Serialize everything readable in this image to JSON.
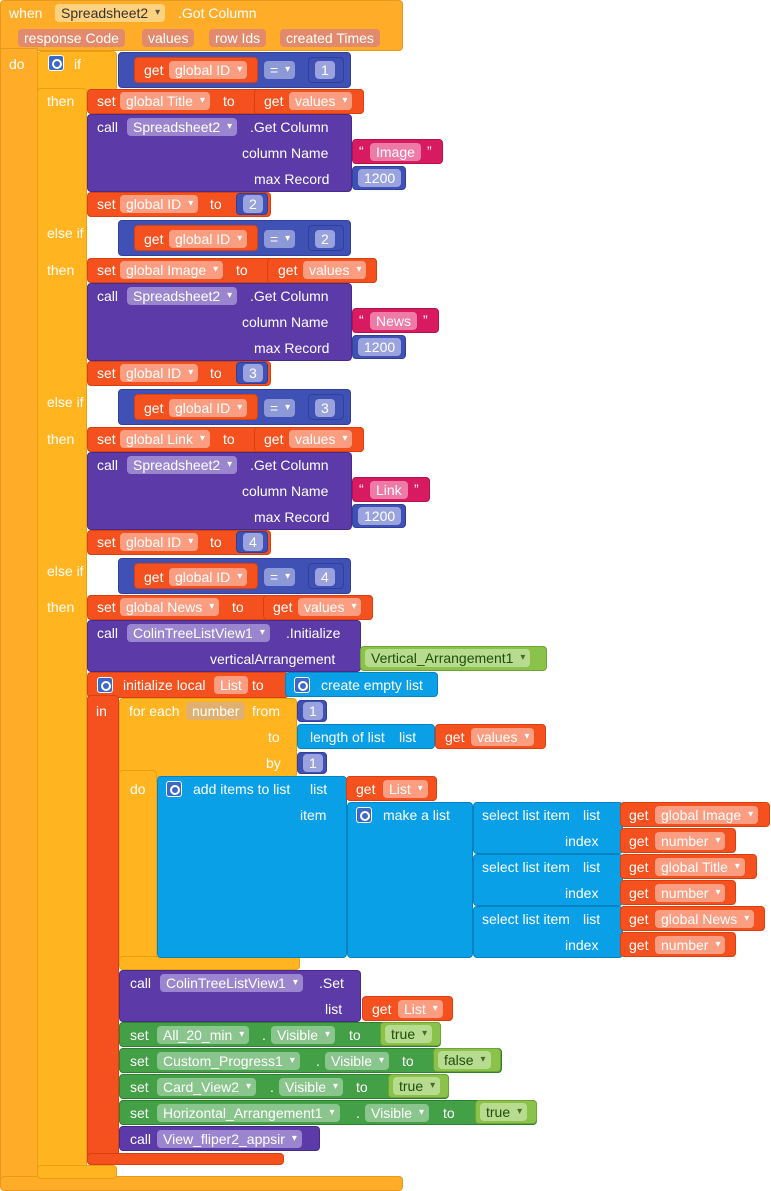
{
  "event": {
    "when": "when",
    "component": "Spreadsheet2",
    "event": ".Got Column",
    "params": [
      "response Code",
      "values",
      "row Ids",
      "created Times"
    ],
    "do": "do"
  },
  "kw": {
    "if": "if",
    "then": "then",
    "elseif": "else if",
    "set": "set",
    "to": "to",
    "get": "get",
    "call": "call",
    "eq": "=",
    "col_name": "column Name",
    "max_rec": "max Record",
    "in": "in",
    "init_local": "initialize local",
    "for_each": "for each",
    "from": "from",
    "by": "by",
    "list": "list",
    "item": "item",
    "index": "index",
    "len_of_list": "length of list",
    "create_empty": "create empty list",
    "add_items": "add items to list",
    "make_list": "make a list",
    "select_item": "select list item",
    "visible": "Visible",
    "dot": ".",
    "ldq": "“",
    "rdq": "”"
  },
  "vars": {
    "global_id": "global ID",
    "global_title": "global Title",
    "global_image": "global Image",
    "global_link": "global Link",
    "global_news": "global News",
    "values": "values",
    "number": "number",
    "list_var": "List"
  },
  "comps": {
    "spreadsheet": "Spreadsheet2",
    "get_column": ".Get Column",
    "tree_view": "ColinTreeListView1",
    "initialize": ".Initialize",
    "set_method": ".Set",
    "vertical_arr": "Vertical_Arrangement1",
    "vertical_arr_param": "verticalArrangement",
    "all_20": "All_20_min",
    "custom_progress": "Custom_Progress1",
    "card_view": "Card_View2",
    "horiz_arr": "Horizontal_Arrangement1",
    "view_fliper": "View_fliper2_appsir"
  },
  "nums": {
    "n1": "1",
    "n2": "2",
    "n3": "3",
    "n4": "4",
    "n1200": "1200"
  },
  "texts": {
    "image": "Image",
    "news": "News",
    "link": "Link"
  },
  "bools": {
    "t": "true",
    "f": "false"
  },
  "colors": {
    "event": "#ffad29",
    "control": "#ffb420",
    "variable": "#f4511e",
    "logic": "#3f51b5",
    "procedure": "#5c3aa8",
    "text": "#d81b60",
    "lists": "#0aa0e8",
    "component_set": "#43a047",
    "component_value": "#8bc34a"
  }
}
